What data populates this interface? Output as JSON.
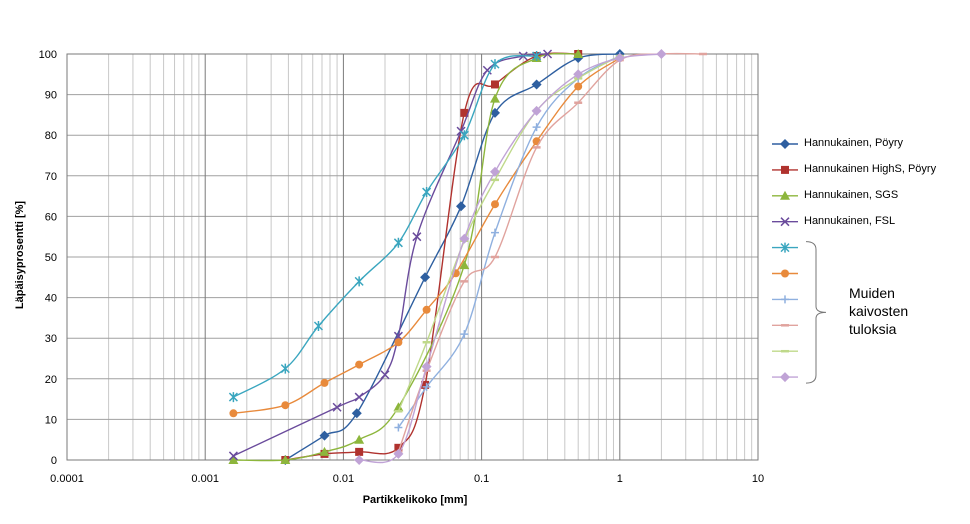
{
  "chart_data": {
    "type": "scatter",
    "title": "",
    "xlabel": "Partikkelikoko  [mm]",
    "ylabel": "Läpäisyprosentti  [%]",
    "x_scale": "log",
    "xlim": [
      0.0001,
      10
    ],
    "ylim": [
      0,
      100
    ],
    "x_ticks": [
      "0.0001",
      "0.001",
      "0.01",
      "0.1",
      "1",
      "10"
    ],
    "y_ticks": [
      "0",
      "10",
      "20",
      "30",
      "40",
      "50",
      "60",
      "70",
      "80",
      "90",
      "100"
    ],
    "grid": true,
    "legend_position": "right",
    "series": [
      {
        "name": "Hannukainen, Pöyry",
        "color": "#2e5fa0",
        "marker": "diamond",
        "x": [
          0.0038,
          0.0073,
          0.0125,
          0.039,
          0.071,
          0.125,
          0.25,
          0.5,
          1.0
        ],
        "y": [
          0,
          6,
          11.5,
          45,
          62.5,
          85.5,
          92.5,
          99,
          100
        ]
      },
      {
        "name": "Hannukainen HighS, Pöyry",
        "color": "#b0322e",
        "marker": "square",
        "x": [
          0.0038,
          0.0073,
          0.013,
          0.025,
          0.039,
          0.075,
          0.125,
          0.25,
          0.5
        ],
        "y": [
          0,
          1.5,
          2,
          3,
          18.5,
          85.5,
          92.5,
          99.5,
          100
        ]
      },
      {
        "name": "Hannukainen, SGS",
        "color": "#8db63c",
        "marker": "triangle",
        "x": [
          0.0016,
          0.0038,
          0.0073,
          0.013,
          0.025,
          0.075,
          0.125,
          0.25,
          0.5
        ],
        "y": [
          0,
          0,
          2,
          5,
          13,
          48,
          89,
          99,
          100
        ]
      },
      {
        "name": "Hannukainen, FSL",
        "color": "#6a4b9c",
        "marker": "x",
        "x": [
          0.0016,
          0.009,
          0.013,
          0.02,
          0.025,
          0.034,
          0.071,
          0.11,
          0.2,
          0.3
        ],
        "y": [
          1,
          13,
          15.5,
          21,
          30.5,
          55,
          81,
          96,
          99.5,
          100
        ]
      },
      {
        "name": "",
        "color": "#3aa6bf",
        "marker": "asterisk",
        "x": [
          0.0016,
          0.0038,
          0.0066,
          0.013,
          0.025,
          0.04,
          0.075,
          0.125,
          0.25
        ],
        "y": [
          15.5,
          22.5,
          33,
          44,
          53.5,
          66,
          80,
          97.5,
          99.5
        ]
      },
      {
        "name": "",
        "color": "#e88a3c",
        "marker": "circle",
        "x": [
          0.0016,
          0.0038,
          0.0073,
          0.013,
          0.025,
          0.04,
          0.065,
          0.125,
          0.25,
          0.5,
          1.0
        ],
        "y": [
          11.5,
          13.5,
          19,
          23.5,
          29,
          37,
          46,
          63,
          78.5,
          92,
          99
        ]
      },
      {
        "name": "",
        "color": "#8fb0df",
        "marker": "plus",
        "x": [
          0.025,
          0.04,
          0.075,
          0.125,
          0.25,
          0.5,
          1.0
        ],
        "y": [
          8,
          18,
          31,
          56,
          82,
          94,
          99.5
        ]
      },
      {
        "name": "",
        "color": "#e0a39e",
        "marker": "dash",
        "x": [
          0.025,
          0.04,
          0.075,
          0.125,
          0.25,
          0.5,
          1.0,
          2.0,
          4.0
        ],
        "y": [
          2,
          22,
          44,
          50,
          77,
          88,
          98.5,
          100,
          100
        ]
      },
      {
        "name": "",
        "color": "#bfd98a",
        "marker": "dash",
        "x": [
          0.025,
          0.04,
          0.075,
          0.125,
          0.25,
          0.5,
          1.0
        ],
        "y": [
          12,
          29,
          54,
          69,
          86,
          94,
          99.5
        ]
      },
      {
        "name": "",
        "color": "#c0a3d6",
        "marker": "diamond",
        "x": [
          0.013,
          0.025,
          0.04,
          0.075,
          0.125,
          0.25,
          0.5,
          1.0,
          2.0
        ],
        "y": [
          0,
          1.5,
          23,
          54.5,
          71,
          86,
          95,
          99,
          100
        ]
      }
    ]
  },
  "note": {
    "lines": [
      "Muiden",
      "kaivosten",
      "tuloksia"
    ]
  }
}
